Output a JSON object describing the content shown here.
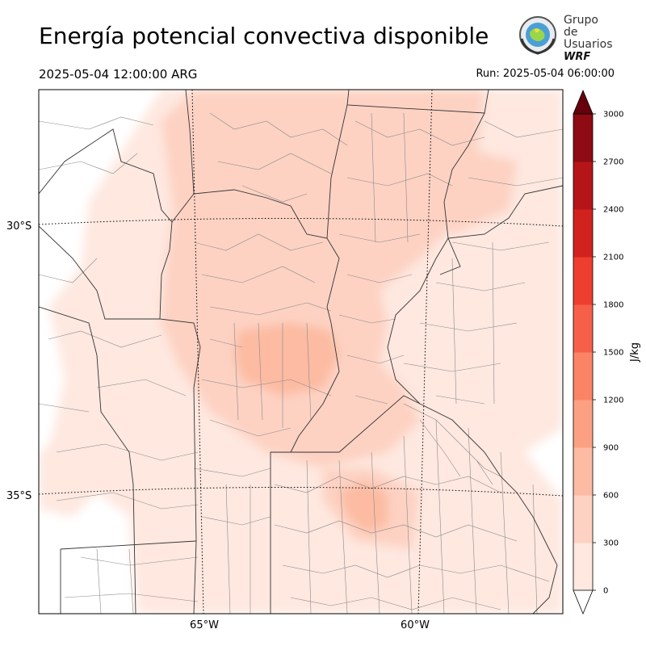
{
  "header": {
    "title": "Energía potencial convectiva disponible",
    "valid_time": "2025-05-04 12:00:00 ARG",
    "run_time": "Run: 2025-05-04 06:00:00"
  },
  "logo": {
    "line1": "Grupo de",
    "line2": "Usuarios",
    "line3": "WRF",
    "icon": "wrf-users-group-seal-icon"
  },
  "map": {
    "lat_labels": [
      "30°S",
      "35°S"
    ],
    "lon_labels": [
      "65°W",
      "60°W"
    ]
  },
  "colorbar": {
    "label": "J/kg",
    "levels": [
      0,
      300,
      600,
      900,
      1200,
      1500,
      1800,
      2100,
      2400,
      2700,
      3000
    ],
    "tick_labels": [
      "0",
      "300",
      "600",
      "900",
      "1200",
      "1500",
      "1800",
      "2100",
      "2400",
      "2700",
      "3000"
    ],
    "colors": [
      "#fee8e0",
      "#fdd2c3",
      "#fcbba2",
      "#fca084",
      "#fb8466",
      "#f6604a",
      "#ee3e2f",
      "#d22220",
      "#b51519",
      "#8e0b13"
    ],
    "over_color": "#67000d",
    "extend": "max"
  }
}
